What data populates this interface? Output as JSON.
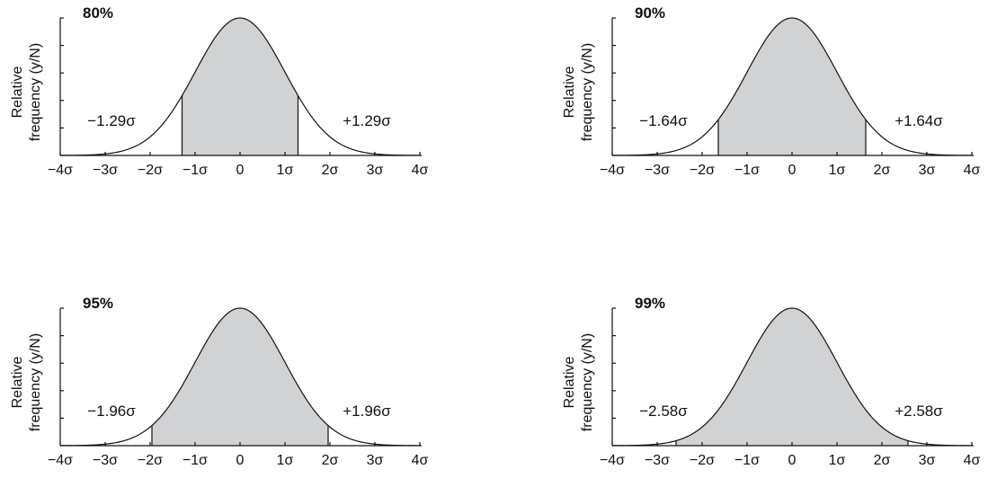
{
  "colors": {
    "shade": "#d1d2d4",
    "line": "#111111",
    "background": "#ffffff"
  },
  "chart_data": [
    {
      "type": "area",
      "title": "80%",
      "ylabel": [
        "Relative",
        "frequency (y/N)"
      ],
      "xticks": [
        "−4σ",
        "−3σ",
        "−2σ",
        "−1σ",
        "0",
        "1σ",
        "2σ",
        "3σ",
        "4σ"
      ],
      "xlim": [
        -4,
        4
      ],
      "mean": 0,
      "sd": 1,
      "shade_range": [
        -1.29,
        1.29
      ],
      "yticks_count": 6,
      "annotations": {
        "left": "−1.29σ",
        "right": "+1.29σ"
      }
    },
    {
      "type": "area",
      "title": "90%",
      "ylabel": [
        "Relative",
        "frequency (y/N)"
      ],
      "xticks": [
        "−4σ",
        "−3σ",
        "−2σ",
        "−1σ",
        "0",
        "1σ",
        "2σ",
        "3σ",
        "4σ"
      ],
      "xlim": [
        -4,
        4
      ],
      "mean": 0,
      "sd": 1,
      "shade_range": [
        -1.64,
        1.64
      ],
      "yticks_count": 6,
      "annotations": {
        "left": "−1.64σ",
        "right": "+1.64σ"
      }
    },
    {
      "type": "area",
      "title": "95%",
      "ylabel": [
        "Relative",
        "frequency (y/N)"
      ],
      "xticks": [
        "−4σ",
        "−3σ",
        "−2σ",
        "−1σ",
        "0",
        "1σ",
        "2σ",
        "3σ",
        "4σ"
      ],
      "xlim": [
        -4,
        4
      ],
      "mean": 0,
      "sd": 1,
      "shade_range": [
        -1.96,
        1.96
      ],
      "yticks_count": 6,
      "annotations": {
        "left": "−1.96σ",
        "right": "+1.96σ"
      }
    },
    {
      "type": "area",
      "title": "99%",
      "ylabel": [
        "Relative",
        "frequency (y/N)"
      ],
      "xticks": [
        "−4σ",
        "−3σ",
        "−2σ",
        "−1σ",
        "0",
        "1σ",
        "2σ",
        "3σ",
        "4σ"
      ],
      "xlim": [
        -4,
        4
      ],
      "mean": 0,
      "sd": 1,
      "shade_range": [
        -2.58,
        2.58
      ],
      "yticks_count": 6,
      "annotations": {
        "left": "−2.58σ",
        "right": "+2.58σ"
      }
    }
  ]
}
